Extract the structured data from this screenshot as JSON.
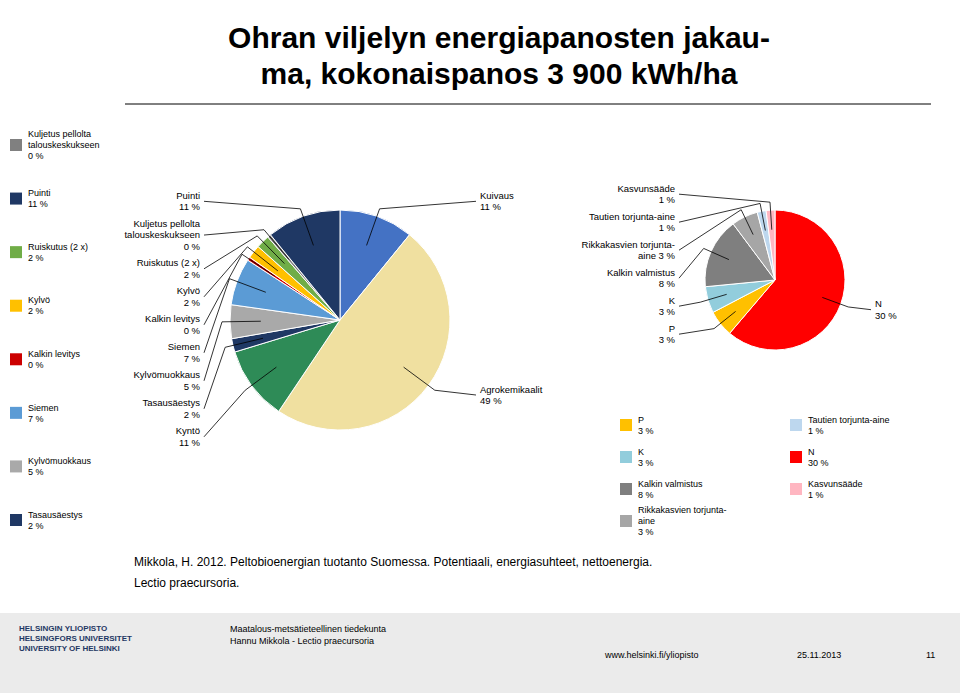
{
  "chart_data": [
    {
      "type": "pie",
      "title": "Ohran viljelyn energiapanosten jakau-\nma, kokonaispanos 3 900 kWh/ha",
      "values": [
        11,
        49,
        11,
        2,
        5,
        7,
        0.5,
        2,
        2,
        0.5,
        11
      ],
      "colors": [
        "#4472C4",
        "#F0E0A0",
        "#2E8B57",
        "#1F3864",
        "#A9A9A9",
        "#5B9BD5",
        "#CC0000",
        "#FFC000",
        "#70AD47",
        "#808080",
        "#1F3864"
      ],
      "data_labels": true,
      "value_labels": [
        "Kuivaus\n11 %",
        "Agrokemikaalit\n49 %",
        "Kyntö\n11 %",
        "Tasausäestys\n2 %",
        "Kylvömuokkaus\n5 %",
        "Siemen\n7 %",
        "Kalkin levitys\n0 %",
        "Kylvö\n2 %",
        "Ruiskutus (2 x)\n2 %",
        "Kuljetus pellolta\ntalouskeskukseen\n0 %",
        "Puinti\n11 %"
      ],
      "legend_items": [
        {
          "name": "Kuljetus pellolta\ntalouskeskukseen",
          "value_label": "0 %",
          "color": "#808080"
        },
        {
          "name": "Puinti",
          "value_label": "11 %",
          "color": "#1F3864"
        },
        {
          "name": "Ruiskutus (2 x)",
          "value_label": "2 %",
          "color": "#70AD47"
        },
        {
          "name": "Kylvö",
          "value_label": "2 %",
          "color": "#FFC000"
        },
        {
          "name": "Kalkin levitys",
          "value_label": "0 %",
          "color": "#CC0000"
        },
        {
          "name": "Siemen",
          "value_label": "7 %",
          "color": "#5B9BD5"
        },
        {
          "name": "Kylvömuokkaus",
          "value_label": "5 %",
          "color": "#A9A9A9"
        },
        {
          "name": "Tasausäestys",
          "value_label": "2 %",
          "color": "#1F3864"
        }
      ],
      "annotations": [
        "Mikkola, H. 2012. Peltobioenergian tuotanto Suomessa. Potentiaali, energiasuhteet, nettoenergia.",
        "Lectio praecursoria.",
        "HELSINGIN YLIOPISTO\nHELSINGFORS UNIVERSITET\nUNIVERSITY OF HELSINKI",
        "Maatalous-metsätieteellinen tiedekunta\nHannu Mikkola - Lectio praecursoria",
        "www.helsinki.fi/yliopisto",
        "25.11.2013",
        "11"
      ]
    },
    {
      "type": "pie",
      "values": [
        30,
        3,
        3,
        8,
        3,
        1,
        1
      ],
      "colors": [
        "#FF0000",
        "#FFC000",
        "#92CDDC",
        "#7F7F7F",
        "#A6A6A6",
        "#BDD7EE",
        "#FFB6C1"
      ],
      "data_labels": true,
      "value_labels": [
        "N\n30 %",
        "P\n3 %",
        "K\n3 %",
        "Kalkin valmistus\n8 %",
        "Rikkakasvien torjunta-\naine 3 %",
        "Tautien torjunta-aine\n1 %",
        "Kasvunsääde\n1 %"
      ],
      "legend_items": [
        {
          "name": "P",
          "value_label": "3 %",
          "color": "#FFC000"
        },
        {
          "name": "K",
          "value_label": "3 %",
          "color": "#92CDDC"
        },
        {
          "name": "Kalkin valmistus",
          "value_label": "8 %",
          "color": "#7F7F7F"
        },
        {
          "name": "Rikkakasvien torjunta-\naine",
          "value_label": "3 %",
          "color": "#A6A6A6"
        },
        {
          "name": "Tautien torjunta-aine",
          "value_label": "1 %",
          "color": "#BDD7EE"
        },
        {
          "name": "N",
          "value_label": "30 %",
          "color": "#FF0000"
        },
        {
          "name": "Kasvunsääde",
          "value_label": "1 %",
          "color": "#FFB6C1"
        }
      ]
    }
  ]
}
